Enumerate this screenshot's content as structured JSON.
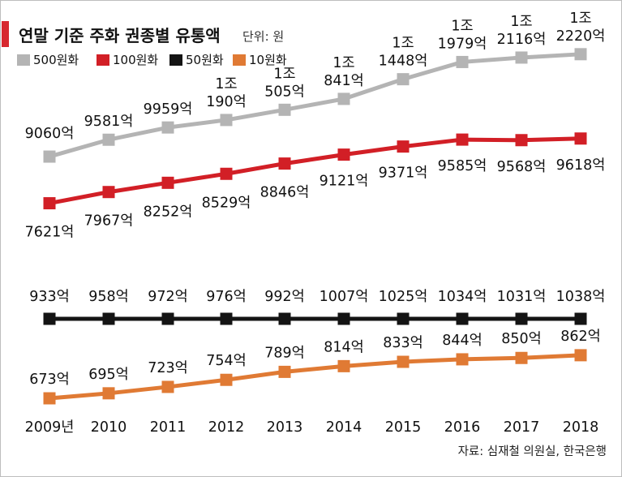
{
  "title": "연말 기준 주화 권종별 유통액",
  "unit": "단위: 원",
  "source": "자료: 심재철 의원실, 한국은행",
  "colors": {
    "accent": "#d7282f",
    "coin500": "#b4b4b4",
    "coin100": "#d21f26",
    "coin50": "#141414",
    "coin10": "#e07a34"
  },
  "chart_data": {
    "type": "line",
    "title": "연말 기준 주화 권종별 유통액",
    "unit": "억원",
    "categories": [
      "2009년",
      "2010",
      "2011",
      "2012",
      "2013",
      "2014",
      "2015",
      "2016",
      "2017",
      "2018"
    ],
    "series": [
      {
        "name": "500원화",
        "color": "#b4b4b4",
        "values": [
          9060,
          9581,
          9959,
          10190,
          10505,
          10841,
          11448,
          11979,
          12116,
          12220
        ],
        "labels": [
          "9060억",
          "9581억",
          "9959억",
          "1조\n190억",
          "1조\n505억",
          "1조\n841억",
          "1조\n1448억",
          "1조\n1979억",
          "1조\n2116억",
          "1조\n2220억"
        ]
      },
      {
        "name": "100원화",
        "color": "#d21f26",
        "values": [
          7621,
          7967,
          8252,
          8529,
          8846,
          9121,
          9371,
          9585,
          9568,
          9618
        ],
        "labels": [
          "7621억",
          "7967억",
          "8252억",
          "8529억",
          "8846억",
          "9121억",
          "9371억",
          "9585억",
          "9568억",
          "9618억"
        ]
      },
      {
        "name": "50원화",
        "color": "#141414",
        "values": [
          933,
          958,
          972,
          976,
          992,
          1007,
          1025,
          1034,
          1031,
          1038
        ],
        "labels": [
          "933억",
          "958억",
          "972억",
          "976억",
          "992억",
          "1007억",
          "1025억",
          "1034억",
          "1031억",
          "1038억"
        ]
      },
      {
        "name": "10원화",
        "color": "#e07a34",
        "values": [
          673,
          695,
          723,
          754,
          789,
          814,
          833,
          844,
          850,
          862
        ],
        "labels": [
          "673억",
          "695억",
          "723억",
          "754억",
          "789억",
          "814억",
          "833억",
          "844억",
          "850억",
          "862억"
        ]
      }
    ]
  }
}
